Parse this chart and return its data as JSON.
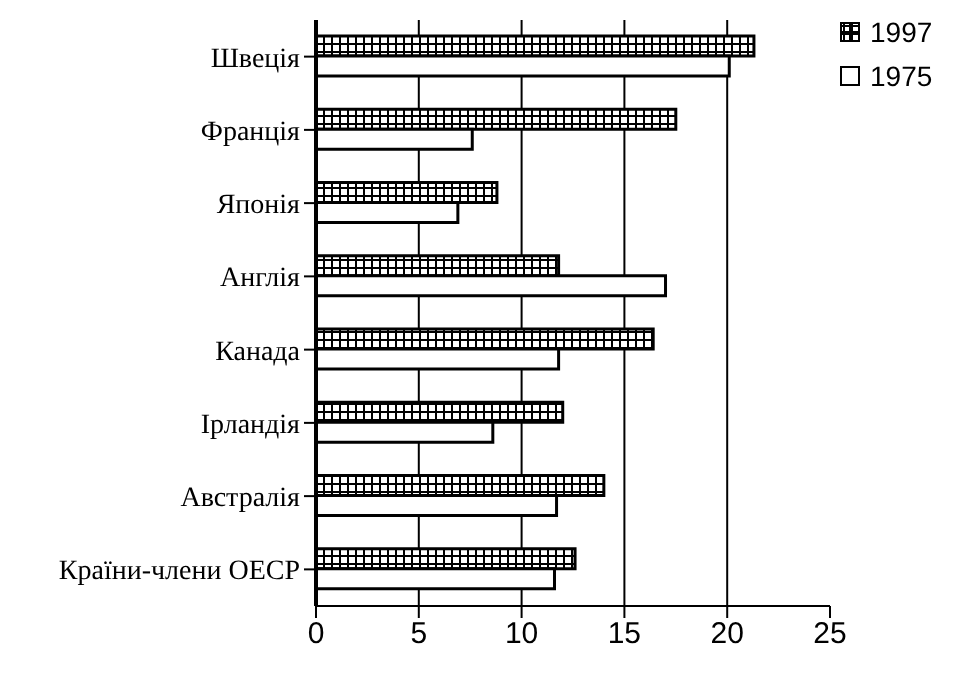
{
  "chart_data": {
    "type": "bar",
    "orientation": "horizontal",
    "categories": [
      "Швеція",
      "Франція",
      "Японія",
      "Англія",
      "Канада",
      "Ірландія",
      "Австралія",
      "Країни-члени ОЕСР"
    ],
    "series": [
      {
        "name": "1997",
        "color": "#000000",
        "values": [
          21.3,
          17.5,
          8.8,
          11.8,
          16.4,
          12.0,
          14.0,
          12.6
        ]
      },
      {
        "name": "1975",
        "color": "#ffffff",
        "values": [
          20.1,
          7.6,
          6.9,
          17.0,
          11.8,
          8.6,
          11.7,
          11.6
        ]
      }
    ],
    "xlim": [
      0,
      25
    ],
    "xticks": [
      0,
      5,
      10,
      15,
      20,
      25
    ],
    "grid": "x",
    "legend": "top right"
  }
}
